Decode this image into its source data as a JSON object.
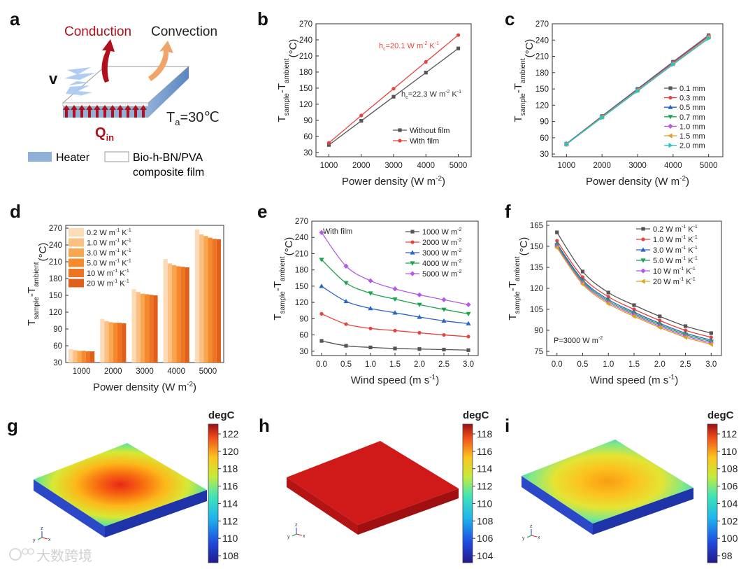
{
  "panel_letters": [
    "a",
    "b",
    "c",
    "d",
    "e",
    "f",
    "g",
    "h",
    "i"
  ],
  "schematic": {
    "conduction": "Conduction",
    "convection": "Convection",
    "v_label": "v",
    "q_label": "Q",
    "q_sub": "in",
    "ta_label": "T",
    "ta_sub": "a",
    "ta_value": "=30℃",
    "legend_heater": "Heater",
    "legend_film_1": "Bio-h-BN/PVA",
    "legend_film_2": "composite film",
    "colors": {
      "heater": "#8fb0d8",
      "arrow_red": "#b0101c",
      "arrow_orange": "#f0a46a",
      "flame": "#a8c8f0"
    }
  },
  "thermal_maps": [
    {
      "legend_title": "degC",
      "ticks": [
        "122",
        "120",
        "118",
        "116",
        "114",
        "112",
        "110",
        "108"
      ],
      "mode": "hot"
    },
    {
      "legend_title": "degC",
      "ticks": [
        "118",
        "116",
        "114",
        "112",
        "110",
        "108",
        "106",
        "104"
      ],
      "mode": "uniform"
    },
    {
      "legend_title": "degC",
      "ticks": [
        "112",
        "110",
        "108",
        "106",
        "104",
        "102",
        "100",
        "98"
      ],
      "mode": "warm"
    }
  ],
  "axes_triad": {
    "x": "x",
    "y": "y",
    "z": "z"
  },
  "watermark": "大数跨境",
  "chart_data": [
    {
      "panel": "b",
      "type": "line",
      "x": [
        1000,
        2000,
        3000,
        4000,
        5000
      ],
      "xlim": [
        600,
        5400
      ],
      "ylim": [
        22,
        270
      ],
      "xticks": [
        "1000",
        "2000",
        "3000",
        "4000",
        "5000"
      ],
      "yticks": [
        30,
        60,
        90,
        120,
        150,
        180,
        210,
        240,
        270
      ],
      "xlabel": "Power density (W m",
      "xlabel_sup": "-2",
      "xlabel_end": ")",
      "ylabel_main": "T",
      "ylabel_sub1": "sample",
      "ylabel_mid": "-T",
      "ylabel_sub2": "ambient",
      "ylabel_unit": "(°C)",
      "series": [
        {
          "name": "Without film",
          "color": "#555555",
          "marker": "square",
          "values": [
            44,
            89,
            134,
            179,
            224
          ]
        },
        {
          "name": "With film",
          "color": "#e8423c",
          "marker": "circle",
          "values": [
            48,
            99,
            149,
            199,
            249
          ]
        }
      ],
      "annotations": [
        {
          "pre": "h",
          "sub": "c",
          "text": "=20.1 W m",
          "sup1": "-2",
          "mid": " K",
          "sup2": "-1",
          "color": "#e8423c"
        },
        {
          "pre": "h",
          "sub": "c",
          "text": "=22.3 W m",
          "sup1": "-2",
          "mid": " K",
          "sup2": "-1",
          "color": "#333333"
        }
      ]
    },
    {
      "panel": "c",
      "type": "line",
      "x": [
        1000,
        2000,
        3000,
        4000,
        5000
      ],
      "xlim": [
        600,
        5400
      ],
      "ylim": [
        25,
        270
      ],
      "xticks": [
        "1000",
        "2000",
        "3000",
        "4000",
        "5000"
      ],
      "yticks": [
        30,
        60,
        90,
        120,
        150,
        180,
        210,
        240,
        270
      ],
      "xlabel": "Power density (W m",
      "xlabel_sup": "-2",
      "xlabel_end": ")",
      "ylabel_main": "T",
      "ylabel_sub1": "sample",
      "ylabel_mid": "-T",
      "ylabel_sub2": "ambient",
      "ylabel_unit": "(°C)",
      "series": [
        {
          "name": "0.1 mm",
          "color": "#555555",
          "marker": "square",
          "values": [
            49,
            100,
            150,
            200,
            249
          ]
        },
        {
          "name": "0.3 mm",
          "color": "#e8423c",
          "marker": "circle",
          "values": [
            49,
            99,
            149,
            199,
            248
          ]
        },
        {
          "name": "0.5 mm",
          "color": "#2a64c8",
          "marker": "triangle",
          "values": [
            49,
            99,
            149,
            198,
            247
          ]
        },
        {
          "name": "0.7 mm",
          "color": "#1ea44e",
          "marker": "tridown",
          "values": [
            48,
            98,
            148,
            197,
            246
          ]
        },
        {
          "name": "1.0 mm",
          "color": "#b45ae6",
          "marker": "diamond",
          "values": [
            48,
            98,
            148,
            197,
            246
          ]
        },
        {
          "name": "1.5 mm",
          "color": "#e0a020",
          "marker": "tri-left",
          "values": [
            48,
            98,
            147,
            196,
            245
          ]
        },
        {
          "name": "2.0 mm",
          "color": "#26c6c6",
          "marker": "tri-right",
          "values": [
            48,
            97,
            146,
            195,
            243
          ]
        }
      ]
    },
    {
      "panel": "d",
      "type": "bar",
      "categories": [
        "1000",
        "2000",
        "3000",
        "4000",
        "5000"
      ],
      "ylim": [
        30,
        275
      ],
      "yticks": [
        30,
        60,
        90,
        120,
        150,
        180,
        210,
        240,
        270
      ],
      "xlabel": "Power density (W m",
      "xlabel_sup": "-2",
      "xlabel_end": ")",
      "ylabel_main": "T",
      "ylabel_sub1": "sample",
      "ylabel_mid": "-T",
      "ylabel_sub2": "ambient",
      "ylabel_unit": "(°C)",
      "series": [
        {
          "name": "0.2 W m",
          "sup1": "-1",
          "mid": " K",
          "sup2": "-1",
          "color": "#fcdcb8",
          "values": [
            54,
            108,
            161,
            215,
            268
          ]
        },
        {
          "name": "1.0 W m",
          "sup1": "-1",
          "mid": " K",
          "sup2": "-1",
          "color": "#fbc082",
          "values": [
            52,
            104,
            156,
            207,
            259
          ]
        },
        {
          "name": "3.0 W m",
          "sup1": "-1",
          "mid": " K",
          "sup2": "-1",
          "color": "#f9a650",
          "values": [
            51,
            102,
            153,
            204,
            256
          ]
        },
        {
          "name": "5.0 W m",
          "sup1": "-1",
          "mid": " K",
          "sup2": "-1",
          "color": "#f48a2c",
          "values": [
            51,
            101,
            152,
            202,
            253
          ]
        },
        {
          "name": "10 W m",
          "sup1": "-1",
          "mid": " K",
          "sup2": "-1",
          "color": "#ec7422",
          "values": [
            50,
            101,
            151,
            201,
            251
          ]
        },
        {
          "name": "20 W m",
          "sup1": "-1",
          "mid": " K",
          "sup2": "-1",
          "color": "#e0601a",
          "values": [
            50,
            100,
            150,
            200,
            250
          ]
        }
      ]
    },
    {
      "panel": "e",
      "type": "line",
      "x": [
        0,
        0.5,
        1.0,
        1.5,
        2.0,
        2.5,
        3.0
      ],
      "xlim": [
        -0.2,
        3.2
      ],
      "ylim": [
        22,
        270
      ],
      "xticks": [
        "0.0",
        "0.5",
        "1.0",
        "1.5",
        "2.0",
        "2.5",
        "3.0"
      ],
      "yticks": [
        30,
        60,
        90,
        120,
        150,
        180,
        210,
        240,
        270
      ],
      "xlabel": "Wind speed (m s",
      "xlabel_sup": "-1",
      "xlabel_end": ")",
      "ylabel_main": "T",
      "ylabel_sub1": "sample",
      "ylabel_mid": "-T",
      "ylabel_sub2": "ambient",
      "ylabel_unit": "(°C)",
      "inset_label": "With film",
      "series": [
        {
          "name": "1000 W m",
          "sup1": "-2",
          "color": "#555555",
          "marker": "square",
          "values": [
            49,
            40,
            37,
            35,
            34,
            33,
            32
          ]
        },
        {
          "name": "2000 W m",
          "sup1": "-2",
          "color": "#e8423c",
          "marker": "circle",
          "values": [
            99,
            80,
            72,
            68,
            64,
            60,
            57
          ]
        },
        {
          "name": "3000 W m",
          "sup1": "-2",
          "color": "#2a64c8",
          "marker": "triangle",
          "values": [
            150,
            122,
            109,
            101,
            93,
            86,
            81
          ]
        },
        {
          "name": "4000 W m",
          "sup1": "-2",
          "color": "#1ea44e",
          "marker": "tridown",
          "values": [
            199,
            156,
            137,
            126,
            116,
            107,
            99
          ]
        },
        {
          "name": "5000 W m",
          "sup1": "-2",
          "color": "#b45ae6",
          "marker": "diamond",
          "values": [
            249,
            187,
            160,
            145,
            134,
            125,
            116
          ]
        }
      ]
    },
    {
      "panel": "f",
      "type": "line",
      "x": [
        0,
        0.5,
        1.0,
        1.5,
        2.0,
        2.5,
        3.0
      ],
      "xlim": [
        -0.2,
        3.2
      ],
      "ylim": [
        72,
        168
      ],
      "xticks": [
        "0.0",
        "0.5",
        "1.0",
        "1.5",
        "2.0",
        "2.5",
        "3.0"
      ],
      "yticks": [
        75,
        90,
        105,
        120,
        135,
        150,
        165
      ],
      "xlabel": "Wind speed (m s",
      "xlabel_sup": "-1",
      "xlabel_end": ")",
      "ylabel_main": "T",
      "ylabel_sub1": "sample",
      "ylabel_mid": "-T",
      "ylabel_sub2": "ambient",
      "ylabel_unit": "(°C)",
      "inset_label": "P=3000 W m",
      "inset_sup": "-2",
      "series": [
        {
          "name": "0.2 W m",
          "sup1": "-1",
          "mid": " K",
          "sup2": "-1",
          "color": "#555555",
          "marker": "square",
          "values": [
            160,
            132,
            117,
            108,
            100,
            93,
            88
          ]
        },
        {
          "name": "1.0 W m",
          "sup1": "-1",
          "mid": " K",
          "sup2": "-1",
          "color": "#e8423c",
          "marker": "circle",
          "values": [
            154,
            128,
            114,
            105,
            97,
            90,
            85
          ]
        },
        {
          "name": "3.0 W m",
          "sup1": "-1",
          "mid": " K",
          "sup2": "-1",
          "color": "#2a64c8",
          "marker": "triangle",
          "values": [
            152,
            126,
            112,
            103,
            95,
            88,
            83
          ]
        },
        {
          "name": "5.0 W m",
          "sup1": "-1",
          "mid": " K",
          "sup2": "-1",
          "color": "#1ea44e",
          "marker": "tridown",
          "values": [
            151,
            125,
            111,
            102,
            94,
            87,
            82
          ]
        },
        {
          "name": "10 W m",
          "sup1": "-1",
          "mid": " K",
          "sup2": "-1",
          "color": "#b45ae6",
          "marker": "diamond",
          "values": [
            150,
            124,
            110,
            101,
            93,
            86,
            81
          ]
        },
        {
          "name": "20 W m",
          "sup1": "-1",
          "mid": " K",
          "sup2": "-1",
          "color": "#e0a020",
          "marker": "tri-left",
          "values": [
            149,
            123,
            109,
            100,
            92,
            85,
            80
          ]
        }
      ]
    }
  ]
}
